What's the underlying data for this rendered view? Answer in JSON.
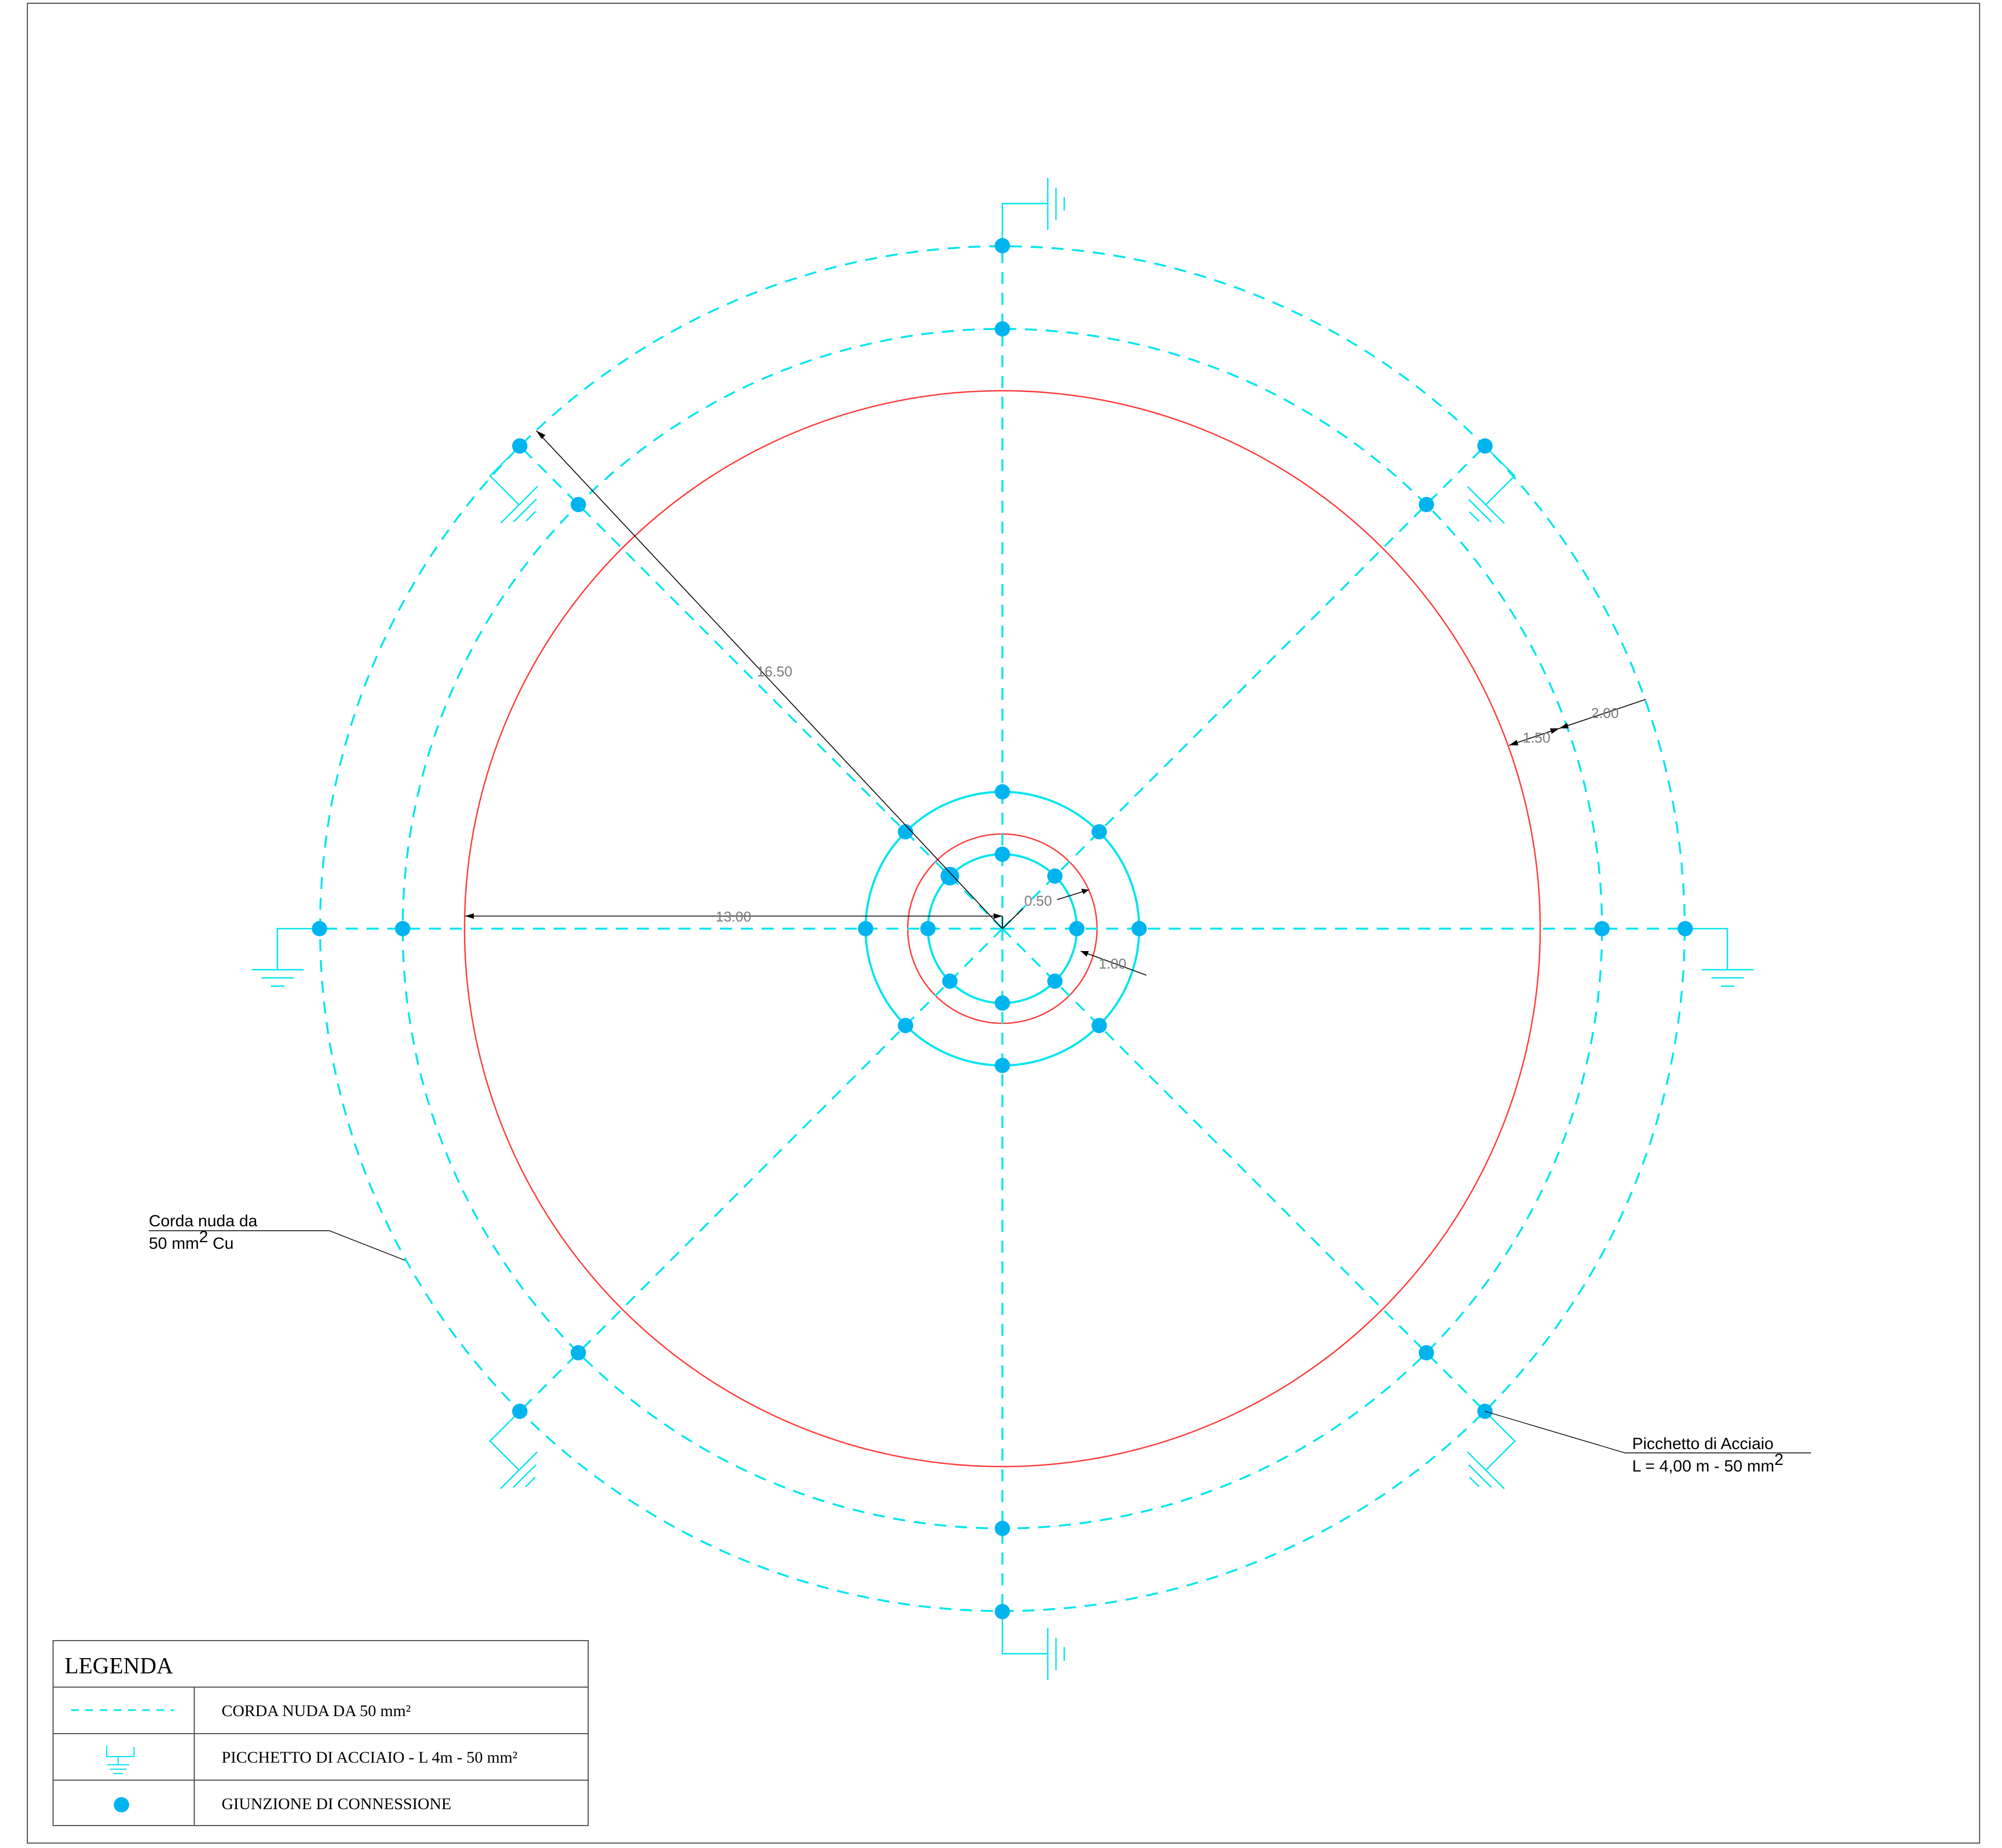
{
  "colors": {
    "cable": "#00e5ee",
    "node": "#00b4f0",
    "structure": "#ff3b3b",
    "dimension": "#000000",
    "text": "#000000"
  },
  "dimensions": {
    "radius": "16.50",
    "diameter_half": "13.00",
    "ring_outer_gap": "2.00",
    "ring_inner_gap": "1.50",
    "center_inner": "0.50",
    "center_outer": "1.00"
  },
  "notes": {
    "cable_note_line1": "Corda nuda da",
    "cable_note_line2": "50 mm",
    "cable_note_sup": "2",
    "cable_note_tail": " Cu",
    "rod_note_line1": "Picchetto di Acciaio",
    "rod_note_line2": "L = 4,00 m - 50 mm",
    "rod_note_sup": "2"
  },
  "legend": {
    "title": "LEGENDA",
    "rows": [
      {
        "symbol": "dashed-cable",
        "label": "CORDA NUDA DA 50 mm²"
      },
      {
        "symbol": "ground-rod",
        "label": "PICCHETTO DI ACCIAIO - L 4m - 50 mm²"
      },
      {
        "symbol": "junction-dot",
        "label": "GIUNZIONE DI CONNESSIONE"
      }
    ]
  }
}
